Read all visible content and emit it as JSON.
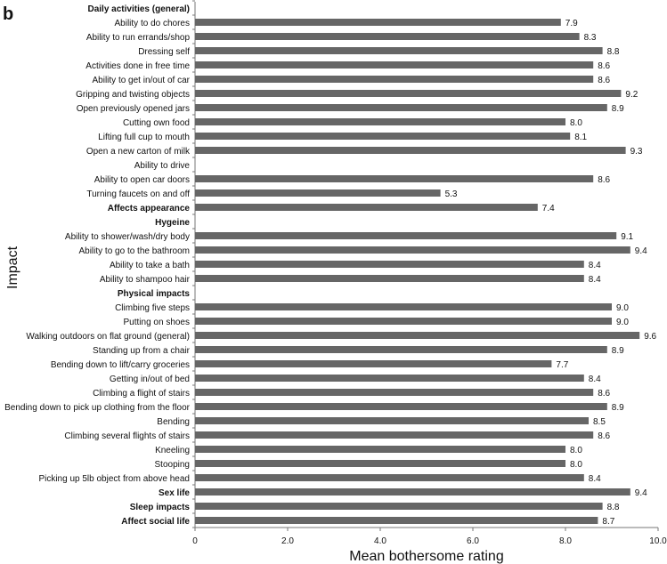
{
  "panel_label": "b",
  "chart_data": {
    "type": "bar",
    "orientation": "horizontal",
    "title": "",
    "xlabel": "Mean bothersome rating",
    "ylabel": "Impact",
    "xlim": [
      0,
      10
    ],
    "xticks": [
      "0",
      "2.0",
      "4.0",
      "6.0",
      "8.0",
      "10.0"
    ],
    "xtick_values": [
      0,
      2,
      4,
      6,
      8,
      10
    ],
    "grid": false,
    "bar_color": "#666666",
    "categories": [
      {
        "label": "Daily activities (general)",
        "bold": true,
        "value": null
      },
      {
        "label": "Ability to do chores",
        "bold": false,
        "value": 7.9
      },
      {
        "label": "Ability to run errands/shop",
        "bold": false,
        "value": 8.3
      },
      {
        "label": "Dressing self",
        "bold": false,
        "value": 8.8
      },
      {
        "label": "Activities done in free time",
        "bold": false,
        "value": 8.6
      },
      {
        "label": "Ability to get in/out of car",
        "bold": false,
        "value": 8.6
      },
      {
        "label": "Gripping and twisting objects",
        "bold": false,
        "value": 9.2
      },
      {
        "label": "Open previously opened jars",
        "bold": false,
        "value": 8.9
      },
      {
        "label": "Cutting own food",
        "bold": false,
        "value": 8.0
      },
      {
        "label": "Lifting full cup to mouth",
        "bold": false,
        "value": 8.1
      },
      {
        "label": "Open a new carton of milk",
        "bold": false,
        "value": 9.3
      },
      {
        "label": "Ability to drive",
        "bold": false,
        "value": null
      },
      {
        "label": "Ability to open car doors",
        "bold": false,
        "value": 8.6
      },
      {
        "label": "Turning faucets on and off",
        "bold": false,
        "value": 5.3
      },
      {
        "label": "Affects appearance",
        "bold": true,
        "value": 7.4
      },
      {
        "label": "Hygeine",
        "bold": true,
        "value": null
      },
      {
        "label": "Ability to shower/wash/dry body",
        "bold": false,
        "value": 9.1
      },
      {
        "label": "Ability to go to the bathroom",
        "bold": false,
        "value": 9.4
      },
      {
        "label": "Ability to take a bath",
        "bold": false,
        "value": 8.4
      },
      {
        "label": "Ability to shampoo hair",
        "bold": false,
        "value": 8.4
      },
      {
        "label": "Physical impacts",
        "bold": true,
        "value": null
      },
      {
        "label": "Climbing five steps",
        "bold": false,
        "value": 9.0
      },
      {
        "label": "Putting on shoes",
        "bold": false,
        "value": 9.0
      },
      {
        "label": "Walking outdoors on flat ground (general)",
        "bold": false,
        "value": 9.6
      },
      {
        "label": "Standing up from a chair",
        "bold": false,
        "value": 8.9
      },
      {
        "label": "Bending down to lift/carry groceries",
        "bold": false,
        "value": 7.7
      },
      {
        "label": "Getting in/out of bed",
        "bold": false,
        "value": 8.4
      },
      {
        "label": "Climbing a flight of stairs",
        "bold": false,
        "value": 8.6
      },
      {
        "label": "Bending down to pick up clothing from the floor",
        "bold": false,
        "value": 8.9
      },
      {
        "label": "Bending",
        "bold": false,
        "value": 8.5
      },
      {
        "label": "Climbing several flights of stairs",
        "bold": false,
        "value": 8.6
      },
      {
        "label": "Kneeling",
        "bold": false,
        "value": 8.0
      },
      {
        "label": "Stooping",
        "bold": false,
        "value": 8.0
      },
      {
        "label": "Picking up 5lb object from above head",
        "bold": false,
        "value": 8.4
      },
      {
        "label": "Sex life",
        "bold": true,
        "value": 9.4
      },
      {
        "label": "Sleep impacts",
        "bold": true,
        "value": 8.8
      },
      {
        "label": "Affect social life",
        "bold": true,
        "value": 8.7
      }
    ]
  }
}
